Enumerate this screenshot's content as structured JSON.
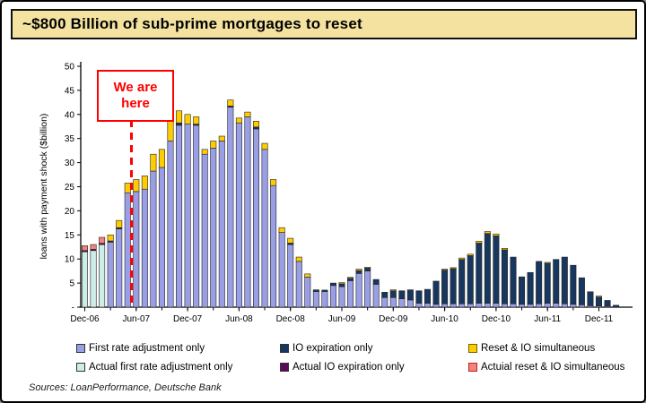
{
  "title": "~$800 Billion of sub-prime mortgages to reset",
  "sources": "Sources: LoanPerformance, Deutsche Bank",
  "colors": {
    "banner_bg": "#F3E2A0",
    "banner_border": "#111111",
    "accent_red": "#FF0000",
    "axis": "#000000"
  },
  "legend": {
    "items": [
      {
        "label": "First rate adjustment only",
        "color": "#9A9FE5",
        "border": "#333333"
      },
      {
        "label": "IO expiration only",
        "color": "#17375E",
        "border": "#333333"
      },
      {
        "label": "Reset & IO simultaneous",
        "color": "#FFCC00",
        "border": "#7a6000"
      },
      {
        "label": "Actual first rate adjustment only",
        "color": "#CDEDE9",
        "border": "#333333"
      },
      {
        "label": "Actual IO expiration only",
        "color": "#5C0A5C",
        "border": "#333333"
      },
      {
        "label": "Actuial reset & IO simultaneous",
        "color": "#F4827D",
        "border": "#C02222"
      }
    ]
  },
  "chart_data": {
    "type": "bar",
    "stacked": true,
    "title": "~$800 Billion of sub-prime mortgages to reset",
    "xlabel": "",
    "ylabel": "loans with payment shock ($billion)",
    "ylim": [
      0,
      50
    ],
    "grid": false,
    "legend_position": "bottom",
    "ytick_values": [
      0,
      5,
      10,
      15,
      20,
      25,
      30,
      35,
      40,
      45,
      50
    ],
    "ytick_labels": [
      "-",
      "5",
      "10",
      "15",
      "20",
      "25",
      "30",
      "35",
      "40",
      "45",
      "50"
    ],
    "categories": [
      "Dec-06",
      "Jan-07",
      "Feb-07",
      "Mar-07",
      "Apr-07",
      "May-07",
      "Jun-07",
      "Jul-07",
      "Aug-07",
      "Sep-07",
      "Oct-07",
      "Nov-07",
      "Dec-07",
      "Jan-08",
      "Feb-08",
      "Mar-08",
      "Apr-08",
      "May-08",
      "Jun-08",
      "Jul-08",
      "Aug-08",
      "Sep-08",
      "Oct-08",
      "Nov-08",
      "Dec-08",
      "Jan-09",
      "Feb-09",
      "Mar-09",
      "Apr-09",
      "May-09",
      "Jun-09",
      "Jul-09",
      "Aug-09",
      "Sep-09",
      "Oct-09",
      "Nov-09",
      "Dec-09",
      "Jan-10",
      "Feb-10",
      "Mar-10",
      "Apr-10",
      "May-10",
      "Jun-10",
      "Jul-10",
      "Aug-10",
      "Sep-10",
      "Oct-10",
      "Nov-10",
      "Dec-10",
      "Jan-11",
      "Feb-11",
      "Mar-11",
      "Apr-11",
      "May-11",
      "Jun-11",
      "Jul-11",
      "Aug-11",
      "Sep-11",
      "Oct-11",
      "Nov-11",
      "Dec-11",
      "Jan-12",
      "Feb-12"
    ],
    "xtick_indices": [
      0,
      6,
      12,
      18,
      24,
      30,
      36,
      42,
      48,
      54,
      60
    ],
    "xtick_labels": [
      "Dec-06",
      "Jun-07",
      "Dec-07",
      "Jun-08",
      "Dec-08",
      "Jun-09",
      "Dec-09",
      "Jun-10",
      "Dec-10",
      "Jun-11",
      "Dec-11"
    ],
    "minor_xtick_every_months": 3,
    "series": [
      {
        "name": "Actual first rate adjustment only",
        "color": "#CDEDE9",
        "values": [
          11.5,
          11.75,
          13
        ]
      },
      {
        "name": "Actual IO expiration only",
        "color": "#5C0A5C",
        "values": [
          0.25,
          0.25,
          0.25
        ]
      },
      {
        "name": "Actual reset & IO simultaneous",
        "color": "#F4827D",
        "values": [
          1,
          1,
          1.25
        ]
      },
      {
        "name": "First rate adjustment only",
        "color": "#9A9FE5",
        "values": [
          0,
          0,
          0,
          13.5,
          16.25,
          23.75,
          24,
          24.5,
          28.25,
          29,
          34.5,
          37.75,
          38,
          37.75,
          31.75,
          33,
          34.5,
          41.5,
          38.25,
          39.5,
          37,
          32.75,
          25.25,
          15.5,
          13,
          9.5,
          6.25,
          3.25,
          3.25,
          4.5,
          4.25,
          5.5,
          7,
          7.5,
          4.75,
          2,
          2,
          1.75,
          1.5,
          0.8,
          0.8,
          0.6,
          0.7,
          0.7,
          0.7,
          0.7,
          0.8,
          0.8,
          0.8,
          0.7,
          0.7,
          0.6,
          0.6,
          0.7,
          0.8,
          0.8,
          0.7,
          0.6,
          0.5,
          0.3,
          0.25,
          0.2,
          0
        ]
      },
      {
        "name": "IO expiration only",
        "color": "#17375E",
        "values": [
          0,
          0,
          0,
          0.25,
          0.25,
          0,
          0,
          0,
          0,
          0,
          0,
          0.5,
          0,
          0.25,
          0,
          0,
          0,
          0.25,
          0,
          0,
          0.4,
          0,
          0,
          0,
          0.3,
          0,
          0,
          0.35,
          0.3,
          0.5,
          0.6,
          0.5,
          0.6,
          0.6,
          1,
          1.1,
          1.4,
          1.65,
          2.1,
          2.6,
          2.9,
          4.8,
          7,
          7.3,
          9.2,
          10,
          12.5,
          14.5,
          14,
          11.2,
          9.7,
          5.7,
          6.6,
          8.8,
          8.3,
          9.1,
          9.7,
          8.1,
          5.6,
          2.9,
          1.85,
          1.2,
          0.4
        ]
      },
      {
        "name": "Reset & IO simultaneous",
        "color": "#FFCC00",
        "values": [
          0,
          0,
          0,
          1.25,
          1.5,
          2,
          2.5,
          2.75,
          3.5,
          3.75,
          4.5,
          2.5,
          2,
          1.5,
          1,
          1.5,
          1,
          1.25,
          1,
          1,
          1.2,
          1.25,
          1.25,
          1,
          1,
          0.9,
          0.65,
          0,
          0,
          0,
          0.25,
          0.2,
          0.3,
          0.2,
          0,
          0,
          0.2,
          0,
          0,
          0,
          0,
          0,
          0.2,
          0.2,
          0.3,
          0.3,
          0.4,
          0.4,
          0.4,
          0.3,
          0,
          0,
          0,
          0,
          0.2,
          0,
          0,
          0,
          0,
          0,
          0.2,
          0,
          0
        ]
      }
    ],
    "annotation": {
      "text": "We are here",
      "marker_month": "May-07"
    }
  }
}
